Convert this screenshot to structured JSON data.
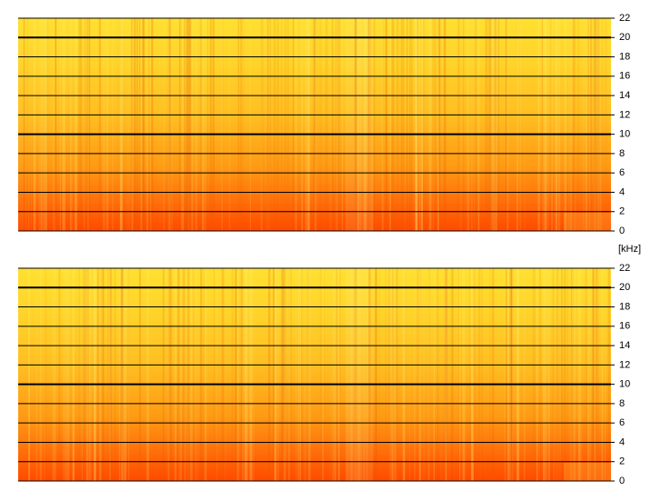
{
  "chart_data": [
    {
      "type": "spectrogram",
      "y_label": "[kHz]",
      "ylim": [
        0,
        22
      ],
      "yticks": [
        0,
        2,
        4,
        6,
        8,
        10,
        12,
        14,
        16,
        18,
        20,
        22
      ],
      "grid": true
    },
    {
      "type": "spectrogram",
      "ylim": [
        0,
        22
      ],
      "yticks": [
        0,
        2,
        4,
        6,
        8,
        10,
        12,
        14,
        16,
        18,
        20,
        22
      ],
      "grid": true
    }
  ]
}
